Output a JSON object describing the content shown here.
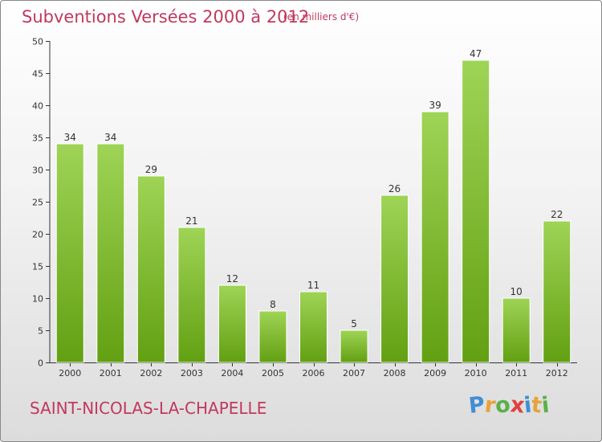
{
  "chart_data": {
    "type": "bar",
    "title": "Subventions Versées 2000 à 2012",
    "subtitle": "(en milliers d'€)",
    "categories": [
      "2000",
      "2001",
      "2002",
      "2003",
      "2004",
      "2005",
      "2006",
      "2007",
      "2008",
      "2009",
      "2010",
      "2011",
      "2012"
    ],
    "values": [
      34,
      34,
      29,
      21,
      12,
      8,
      11,
      5,
      26,
      39,
      47,
      10,
      22
    ],
    "ylim": [
      0,
      50
    ],
    "yticks": [
      0,
      5,
      10,
      15,
      20,
      25,
      30,
      35,
      40,
      45,
      50
    ],
    "xlabel": "",
    "ylabel": "",
    "grid": false,
    "legend": "none",
    "bar_color_top": "#9fd456",
    "bar_color_bottom": "#62a012"
  },
  "footer": {
    "place": "SAINT-NICOLAS-LA-CHAPELLE"
  },
  "logo": {
    "text": "Proxiti",
    "letters": [
      {
        "ch": "P",
        "color": "#3f8fd2"
      },
      {
        "ch": "r",
        "color": "#e8a23a"
      },
      {
        "ch": "o",
        "color": "#5ab04a"
      },
      {
        "ch": "x",
        "color": "#e2403a"
      },
      {
        "ch": "i",
        "color": "#3f8fd2"
      },
      {
        "ch": "t",
        "color": "#e8a23a"
      },
      {
        "ch": "i",
        "color": "#5ab04a"
      }
    ]
  },
  "colors": {
    "title": "#c0395e",
    "axis": "#333333"
  }
}
